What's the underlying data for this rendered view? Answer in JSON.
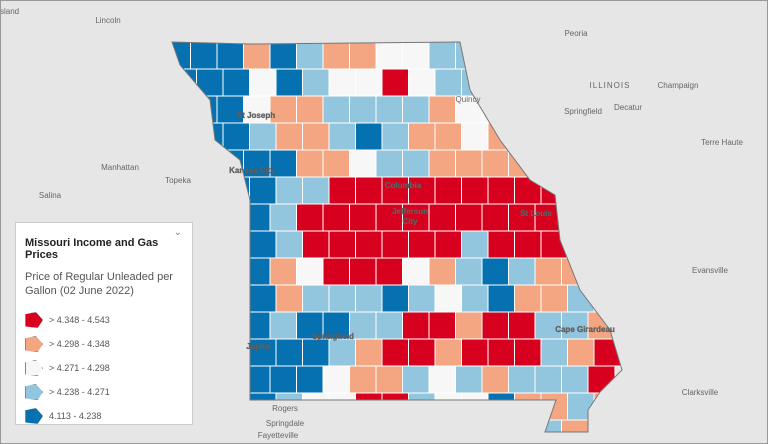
{
  "map": {
    "place_labels": [
      "sland",
      "Lincoln",
      "Peoria",
      "ILLINOIS",
      "Champaign",
      "Quincy",
      "Springfield",
      "Decatur",
      "Manhattan",
      "Topeka",
      "Terre Haute",
      "Salina",
      "Kansas City",
      "St Joseph",
      "Columbia",
      "Jefferson City",
      "St Louis",
      "Evansville",
      "Springfield",
      "Joplin",
      "Cape Girardeau",
      "Clarksville",
      "Rogers",
      "Springdale",
      "Fayetteville"
    ],
    "legend": {
      "title": "Missouri Income and Gas Prices",
      "subtitle": "Price of Regular Unleaded per Gallon (02 June 2022)",
      "items": [
        {
          "label": "> 4.348 - 4.543",
          "color": "#d7001e"
        },
        {
          "label": "> 4.298 - 4.348",
          "color": "#f4a582"
        },
        {
          "label": "> 4.271 - 4.298",
          "color": "#f7f7f7"
        },
        {
          "label": "> 4.238 - 4.271",
          "color": "#92c5de"
        },
        {
          "label": "4.113 - 4.238",
          "color": "#0571b0"
        }
      ]
    }
  }
}
